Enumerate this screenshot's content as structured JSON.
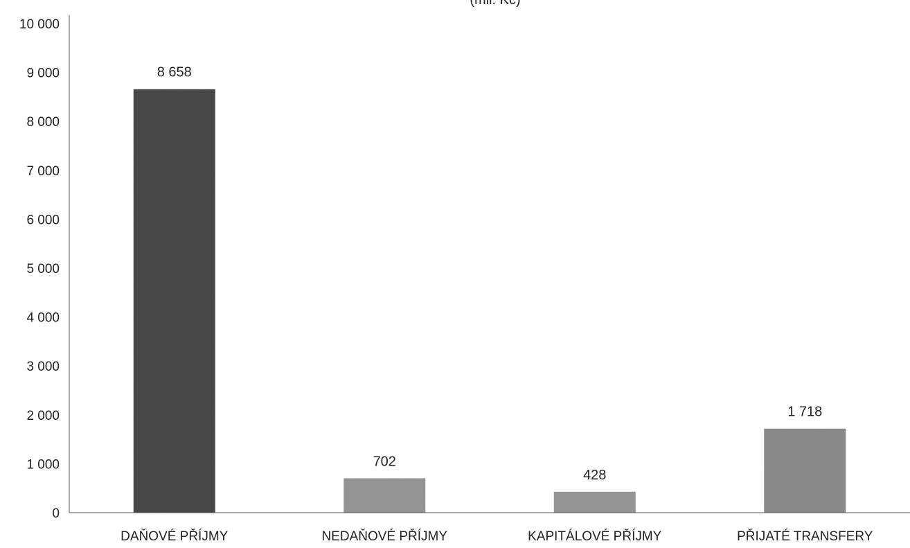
{
  "chart_data": {
    "type": "bar",
    "title": "(mil. Kč)",
    "categories": [
      "DAŇOVÉ PŘÍJMY",
      "NEDAŇOVÉ PŘÍJMY",
      "KAPITÁLOVÉ PŘÍJMY",
      "PŘIJATÉ TRANSFERY"
    ],
    "values": [
      8658,
      702,
      428,
      1718
    ],
    "value_labels": [
      "8 658",
      "702",
      "428",
      "1 718"
    ],
    "ylim": [
      0,
      10000
    ],
    "yticks": [
      0,
      1000,
      2000,
      3000,
      4000,
      5000,
      6000,
      7000,
      8000,
      9000,
      10000
    ],
    "ytick_labels": [
      "0",
      "1 000",
      "2 000",
      "3 000",
      "4 000",
      "5 000",
      "6 000",
      "7 000",
      "8 000",
      "9 000",
      "10 000"
    ],
    "xlabel": "",
    "ylabel": "",
    "grid": false,
    "legend": "none",
    "colors": {
      "bars": [
        "#4a4a4a",
        "#9a9a9a",
        "#9a9a9a",
        "#8f8f8f"
      ],
      "axis": "#555555"
    }
  }
}
